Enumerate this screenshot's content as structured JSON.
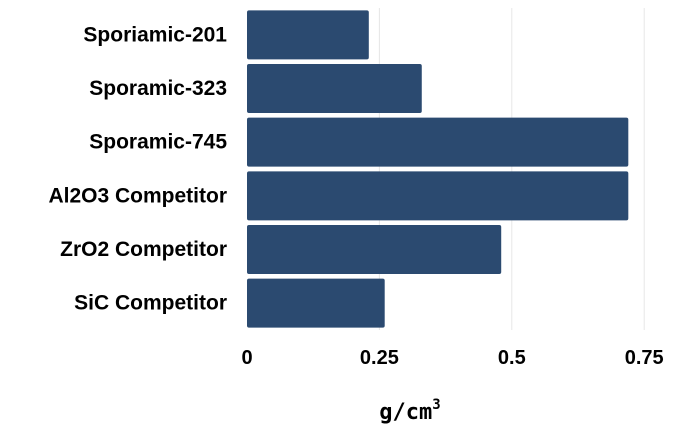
{
  "chart_data": {
    "type": "bar",
    "orientation": "horizontal",
    "categories": [
      "Sporiamic-201",
      "Sporamic-323",
      "Sporamic-745",
      "Al2O3 Competitor",
      "ZrO2 Competitor",
      "SiC Competitor"
    ],
    "values": [
      0.23,
      0.33,
      0.72,
      0.72,
      0.48,
      0.26
    ],
    "xlabel": "g/cm",
    "xlabel_superscript": "3",
    "ylabel": "",
    "title": "",
    "xlim": [
      0,
      0.78
    ],
    "xticks": [
      0,
      0.25,
      0.5,
      0.75
    ],
    "xtick_labels": [
      "0",
      "0.25",
      "0.5",
      "0.75"
    ],
    "grid": "vertical",
    "legend": "none",
    "bar_color": "#2b4a70"
  }
}
